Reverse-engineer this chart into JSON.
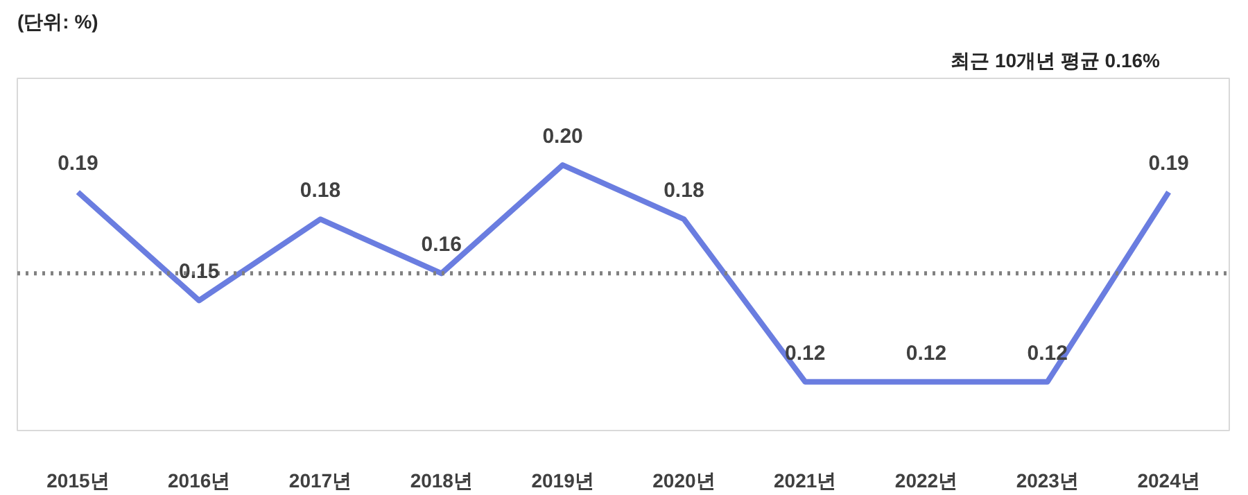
{
  "chart_data": {
    "type": "line",
    "ylabel": "(단위: %)",
    "categories": [
      "2015년",
      "2016년",
      "2017년",
      "2018년",
      "2019년",
      "2020년",
      "2021년",
      "2022년",
      "2023년",
      "2024년"
    ],
    "series": [
      {
        "color": "#6a7de0",
        "values": [
          0.19,
          0.15,
          0.18,
          0.16,
          0.2,
          0.18,
          0.12,
          0.12,
          0.12,
          0.19
        ],
        "value_labels": [
          "0.19",
          "0.15",
          "0.18",
          "0.16",
          "0.20",
          "0.18",
          "0.12",
          "0.12",
          "0.12",
          "0.19"
        ]
      }
    ],
    "ylim": [
      0.102,
      0.232
    ],
    "grid": false,
    "marker": "none",
    "line_style": "solid",
    "annotations": [
      "최근 10개년 평균 0.16%"
    ],
    "ref_lines": [
      {
        "axis": "y",
        "value": 0.16,
        "color": "#808080",
        "line_style": "dotted"
      }
    ]
  }
}
